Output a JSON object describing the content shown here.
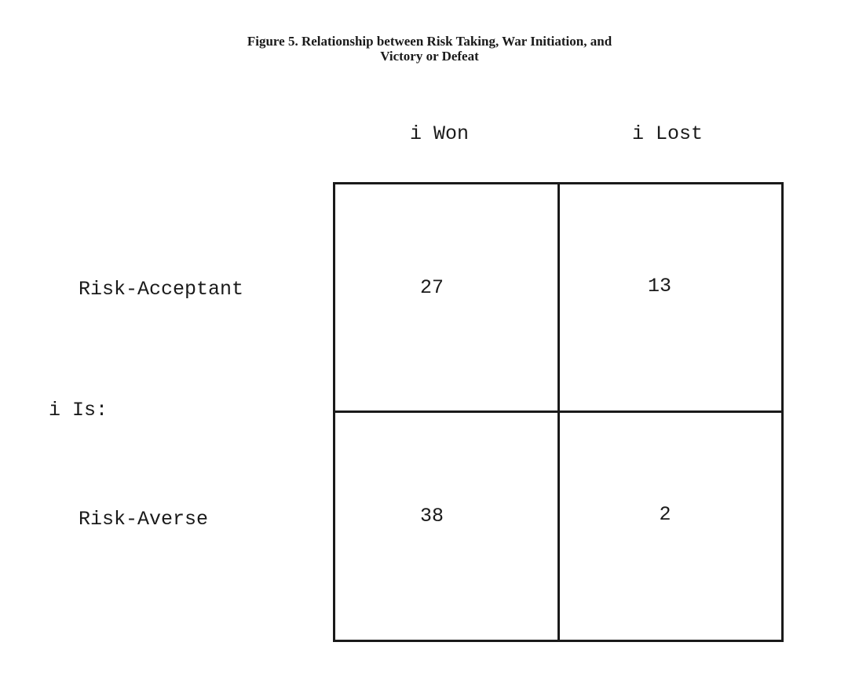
{
  "figure": {
    "caption_line1": "Figure 5. Relationship between Risk Taking, War Initiation, and",
    "caption_line2": "Victory or Defeat"
  },
  "table": {
    "column_headers": [
      "i Won",
      "i Lost"
    ],
    "row_group_label": "i Is:",
    "row_headers": [
      "Risk-Acceptant",
      "Risk-Averse"
    ],
    "cells": [
      [
        "27",
        "13"
      ],
      [
        "38",
        "2"
      ]
    ]
  }
}
